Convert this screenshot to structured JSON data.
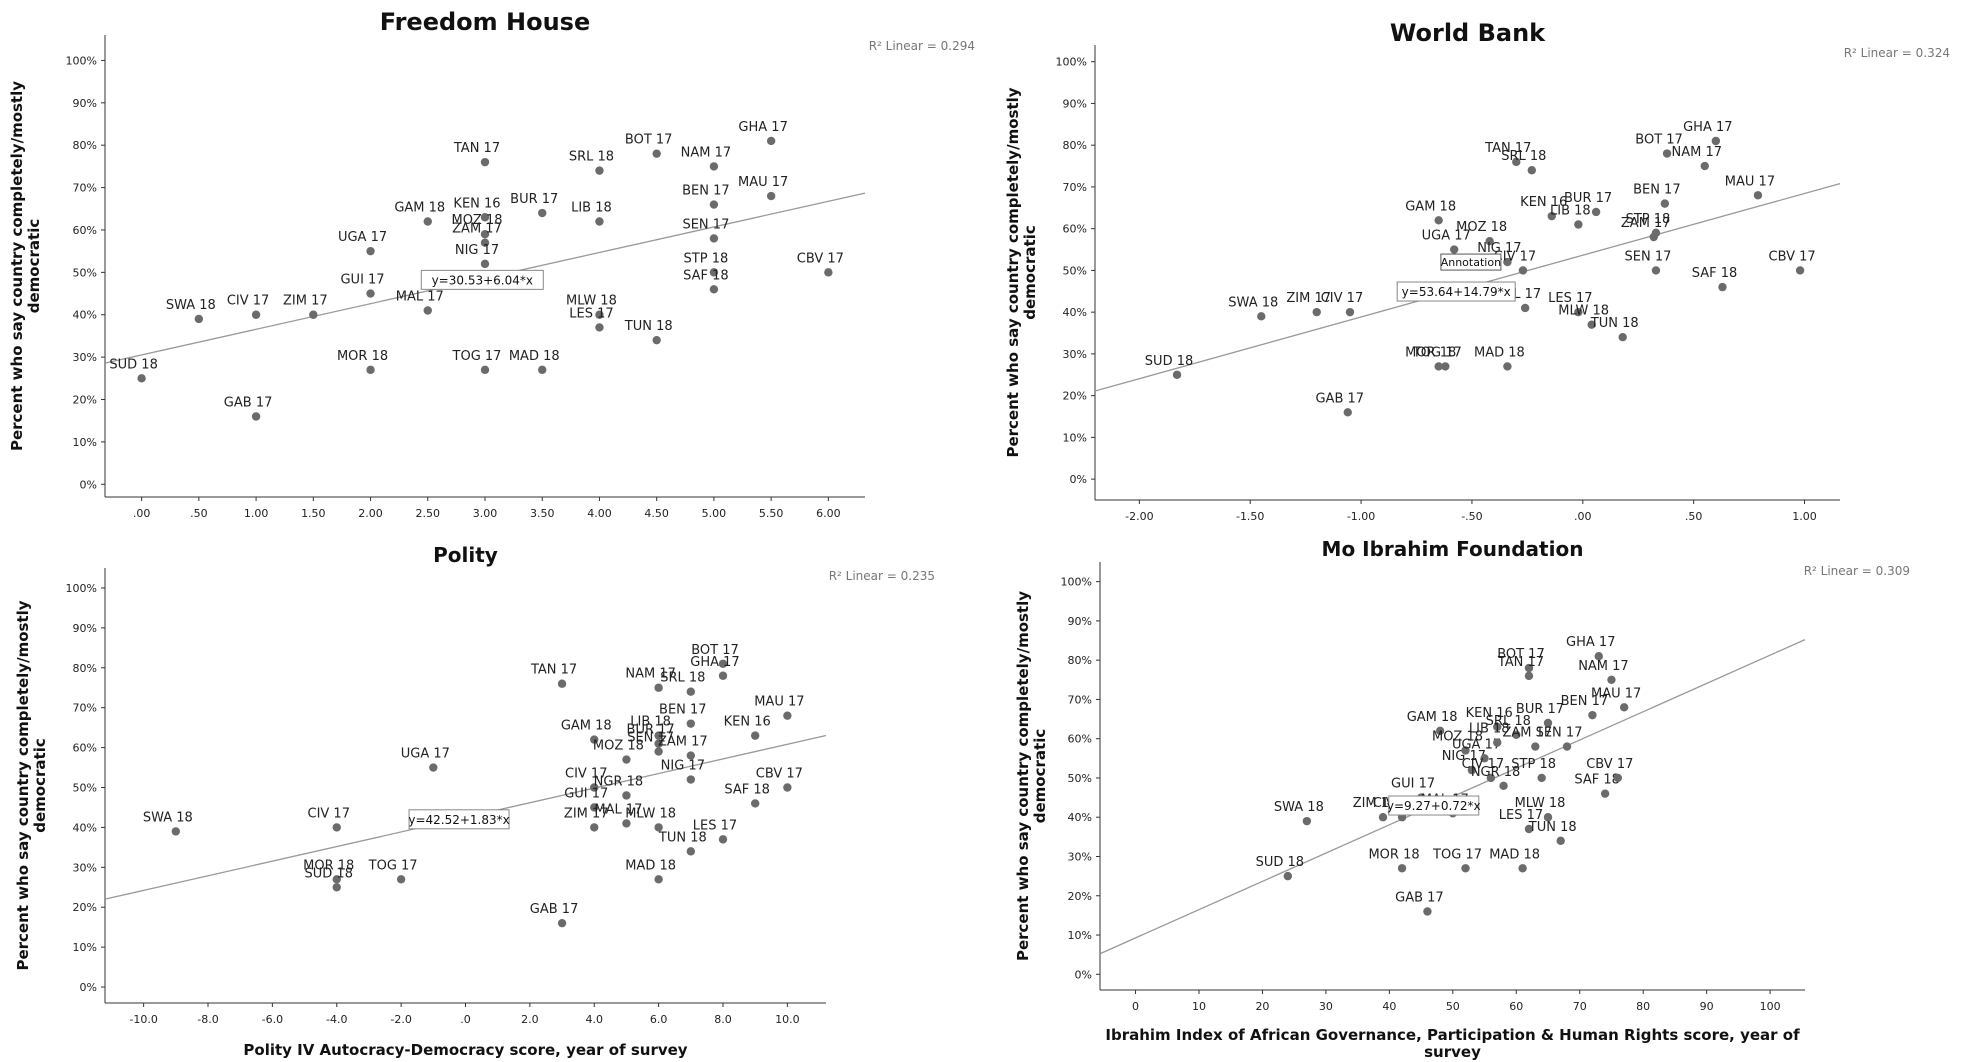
{
  "chart_data": [
    {
      "type": "scatter",
      "title": "Freedom House",
      "ylabel": "Percent who say country completely/mostly democratic",
      "xlabel": "",
      "xlim": [
        -0.32,
        6.32
      ],
      "ylim": [
        -0.03,
        1.06
      ],
      "xticks": [
        0,
        0.5,
        1,
        1.5,
        2,
        2.5,
        3,
        3.5,
        4,
        4.5,
        5,
        5.5,
        6
      ],
      "xtick_labels": [
        ".00",
        ".50",
        "1.00",
        "1.50",
        "2.00",
        "2.50",
        "3.00",
        "3.50",
        "4.00",
        "4.50",
        "5.00",
        "5.50",
        "6.00"
      ],
      "yticks": [
        0,
        0.1,
        0.2,
        0.3,
        0.4,
        0.5,
        0.6,
        0.7,
        0.8,
        0.9,
        1.0
      ],
      "ytick_labels": [
        "0%",
        "10%",
        "20%",
        "30%",
        "40%",
        "50%",
        "60%",
        "70%",
        "80%",
        "90%",
        "100%"
      ],
      "r2_label": "R² Linear = 0.294",
      "fit_label": "y=30.53+6.04*x",
      "fit": {
        "intercept": 0.3053,
        "slope": 0.0604
      },
      "annotation": "",
      "points": [
        {
          "label": "SUD 18",
          "x": 0,
          "y": 0.25
        },
        {
          "label": "SWA 18",
          "x": 0.5,
          "y": 0.39
        },
        {
          "label": "CIV 17",
          "x": 1.0,
          "y": 0.4
        },
        {
          "label": "GAB 17",
          "x": 1.0,
          "y": 0.16
        },
        {
          "label": "ZIM 17",
          "x": 1.5,
          "y": 0.4
        },
        {
          "label": "GUI 17",
          "x": 2.0,
          "y": 0.45
        },
        {
          "label": "UGA 17",
          "x": 2.0,
          "y": 0.55
        },
        {
          "label": "MOR 18",
          "x": 2.0,
          "y": 0.27
        },
        {
          "label": "MAL 17",
          "x": 2.5,
          "y": 0.41
        },
        {
          "label": "GAM 18",
          "x": 2.5,
          "y": 0.62
        },
        {
          "label": "TAN 17",
          "x": 3.0,
          "y": 0.76
        },
        {
          "label": "KEN 16",
          "x": 3.0,
          "y": 0.63
        },
        {
          "label": "MOZ 18",
          "x": 3.0,
          "y": 0.59
        },
        {
          "label": "ZAM 17",
          "x": 3.0,
          "y": 0.57
        },
        {
          "label": "NIG 17",
          "x": 3.0,
          "y": 0.52
        },
        {
          "label": "TOG 17",
          "x": 3.0,
          "y": 0.27
        },
        {
          "label": "BUR 17",
          "x": 3.5,
          "y": 0.64
        },
        {
          "label": "MAD 18",
          "x": 3.5,
          "y": 0.27
        },
        {
          "label": "SRL 18",
          "x": 4.0,
          "y": 0.74
        },
        {
          "label": "LIB 18",
          "x": 4.0,
          "y": 0.62
        },
        {
          "label": "MLW 18",
          "x": 4.0,
          "y": 0.4
        },
        {
          "label": "LES 17",
          "x": 4.0,
          "y": 0.37
        },
        {
          "label": "BOT 17",
          "x": 4.5,
          "y": 0.78
        },
        {
          "label": "TUN 18",
          "x": 4.5,
          "y": 0.34
        },
        {
          "label": "NAM 17",
          "x": 5.0,
          "y": 0.75
        },
        {
          "label": "BEN 17",
          "x": 5.0,
          "y": 0.66
        },
        {
          "label": "SEN 17",
          "x": 5.0,
          "y": 0.58
        },
        {
          "label": "STP 18",
          "x": 5.0,
          "y": 0.5
        },
        {
          "label": "SAF 18",
          "x": 5.0,
          "y": 0.46
        },
        {
          "label": "GHA 17",
          "x": 5.5,
          "y": 0.81
        },
        {
          "label": "MAU 17",
          "x": 5.5,
          "y": 0.68
        },
        {
          "label": "CBV 17",
          "x": 6.0,
          "y": 0.5
        }
      ]
    },
    {
      "type": "scatter",
      "title": "World Bank",
      "ylabel": "Percent who say country completely/mostly democratic",
      "xlabel": "",
      "xlim": [
        -2.2,
        1.16
      ],
      "ylim": [
        -0.05,
        1.04
      ],
      "xticks": [
        -2,
        -1.5,
        -1,
        -0.5,
        0,
        0.5,
        1
      ],
      "xtick_labels": [
        "-2.00",
        "-1.50",
        "-1.00",
        "-.50",
        ".00",
        ".50",
        "1.00"
      ],
      "yticks": [
        0,
        0.1,
        0.2,
        0.3,
        0.4,
        0.5,
        0.6,
        0.7,
        0.8,
        0.9,
        1.0
      ],
      "ytick_labels": [
        "0%",
        "10%",
        "20%",
        "30%",
        "40%",
        "50%",
        "60%",
        "70%",
        "80%",
        "90%",
        "100%"
      ],
      "r2_label": "R² Linear = 0.324",
      "fit_label": "y=53.64+14.79*x",
      "fit": {
        "intercept": 0.5364,
        "slope": 0.1479
      },
      "annotation": "Annotation",
      "points": [
        {
          "label": "SUD 18",
          "x": -1.83,
          "y": 0.25
        },
        {
          "label": "SWA 18",
          "x": -1.45,
          "y": 0.39
        },
        {
          "label": "ZIM 17",
          "x": -1.2,
          "y": 0.4
        },
        {
          "label": "CIV 17",
          "x": -1.05,
          "y": 0.4
        },
        {
          "label": "GAB 17",
          "x": -1.06,
          "y": 0.16
        },
        {
          "label": "GAM 18",
          "x": -0.65,
          "y": 0.62
        },
        {
          "label": "UGA 17",
          "x": -0.58,
          "y": 0.55
        },
        {
          "label": "MOR 18",
          "x": -0.65,
          "y": 0.27
        },
        {
          "label": "TOG 17",
          "x": -0.62,
          "y": 0.27
        },
        {
          "label": "MOZ 18",
          "x": -0.42,
          "y": 0.57
        },
        {
          "label": "NIG 17",
          "x": -0.34,
          "y": 0.52
        },
        {
          "label": "TAN 17",
          "x": -0.3,
          "y": 0.76
        },
        {
          "label": "SRL 18",
          "x": -0.23,
          "y": 0.74
        },
        {
          "label": "KEN 16",
          "x": -0.14,
          "y": 0.63
        },
        {
          "label": "CIV 17",
          "x": -0.27,
          "y": 0.5
        },
        {
          "label": "MAL 17",
          "x": -0.26,
          "y": 0.41
        },
        {
          "label": "MAD 18",
          "x": -0.34,
          "y": 0.27
        },
        {
          "label": "LIB 18",
          "x": -0.02,
          "y": 0.61
        },
        {
          "label": "BUR 17",
          "x": 0.06,
          "y": 0.64
        },
        {
          "label": "LES 17",
          "x": -0.02,
          "y": 0.4
        },
        {
          "label": "MLW 18",
          "x": 0.04,
          "y": 0.37
        },
        {
          "label": "TUN 18",
          "x": 0.18,
          "y": 0.34
        },
        {
          "label": "SEN 17",
          "x": 0.33,
          "y": 0.5
        },
        {
          "label": "ZAM 17",
          "x": 0.32,
          "y": 0.58
        },
        {
          "label": "STP 18",
          "x": 0.33,
          "y": 0.59
        },
        {
          "label": "BEN 17",
          "x": 0.37,
          "y": 0.66
        },
        {
          "label": "BOT 17",
          "x": 0.38,
          "y": 0.78
        },
        {
          "label": "NAM 17",
          "x": 0.55,
          "y": 0.75
        },
        {
          "label": "GHA 17",
          "x": 0.6,
          "y": 0.81
        },
        {
          "label": "SAF 18",
          "x": 0.63,
          "y": 0.46
        },
        {
          "label": "MAU 17",
          "x": 0.79,
          "y": 0.68
        },
        {
          "label": "CBV 17",
          "x": 0.98,
          "y": 0.5
        }
      ]
    },
    {
      "type": "scatter",
      "title": "Polity",
      "ylabel": "Percent who say country completely/mostly democratic",
      "xlabel": "Polity IV Autocracy-Democracy score, year of survey",
      "xlim": [
        -11.2,
        11.2
      ],
      "ylim": [
        -0.04,
        1.05
      ],
      "xticks": [
        -10,
        -8,
        -6,
        -4,
        -2,
        0,
        2,
        4,
        6,
        8,
        10
      ],
      "xtick_labels": [
        "-10.0",
        "-8.0",
        "-6.0",
        "-4.0",
        "-2.0",
        ".0",
        "2.0",
        "4.0",
        "6.0",
        "8.0",
        "10.0"
      ],
      "yticks": [
        0,
        0.1,
        0.2,
        0.3,
        0.4,
        0.5,
        0.6,
        0.7,
        0.8,
        0.9,
        1.0
      ],
      "ytick_labels": [
        "0%",
        "10%",
        "20%",
        "30%",
        "40%",
        "50%",
        "60%",
        "70%",
        "80%",
        "90%",
        "100%"
      ],
      "r2_label": "R² Linear = 0.235",
      "fit_label": "y=42.52+1.83*x",
      "fit": {
        "intercept": 0.4252,
        "slope": 0.0183
      },
      "annotation": "",
      "points": [
        {
          "label": "SWA 18",
          "x": -9,
          "y": 0.39
        },
        {
          "label": "CIV 17",
          "x": -4,
          "y": 0.4
        },
        {
          "label": "MOR 18",
          "x": -4,
          "y": 0.27
        },
        {
          "label": "SUD 18",
          "x": -4,
          "y": 0.25
        },
        {
          "label": "TOG 17",
          "x": -2,
          "y": 0.27
        },
        {
          "label": "UGA 17",
          "x": -1,
          "y": 0.55
        },
        {
          "label": "TAN 17",
          "x": 3,
          "y": 0.76
        },
        {
          "label": "GAB 17",
          "x": 3,
          "y": 0.16
        },
        {
          "label": "GAM 18",
          "x": 4,
          "y": 0.62
        },
        {
          "label": "CIV 17",
          "x": 4,
          "y": 0.5
        },
        {
          "label": "GUI 17",
          "x": 4,
          "y": 0.45
        },
        {
          "label": "ZIM 17",
          "x": 4,
          "y": 0.4
        },
        {
          "label": "MOZ 18",
          "x": 5,
          "y": 0.57
        },
        {
          "label": "NGR 18",
          "x": 5,
          "y": 0.48
        },
        {
          "label": "MAL 17",
          "x": 5,
          "y": 0.41
        },
        {
          "label": "NAM 17",
          "x": 6,
          "y": 0.75
        },
        {
          "label": "LIB 18",
          "x": 6,
          "y": 0.63
        },
        {
          "label": "BUR 17",
          "x": 6,
          "y": 0.61
        },
        {
          "label": "SEN 17",
          "x": 6,
          "y": 0.59
        },
        {
          "label": "MLW 18",
          "x": 6,
          "y": 0.4
        },
        {
          "label": "MAD 18",
          "x": 6,
          "y": 0.27
        },
        {
          "label": "SRL 18",
          "x": 7,
          "y": 0.74
        },
        {
          "label": "BEN 17",
          "x": 7,
          "y": 0.66
        },
        {
          "label": "ZAM 17",
          "x": 7,
          "y": 0.58
        },
        {
          "label": "NIG 17",
          "x": 7,
          "y": 0.52
        },
        {
          "label": "TUN 18",
          "x": 7,
          "y": 0.34
        },
        {
          "label": "BOT 17",
          "x": 8,
          "y": 0.81
        },
        {
          "label": "GHA 17",
          "x": 8,
          "y": 0.78
        },
        {
          "label": "LES 17",
          "x": 8,
          "y": 0.37
        },
        {
          "label": "KEN 16",
          "x": 9,
          "y": 0.63
        },
        {
          "label": "SAF 18",
          "x": 9,
          "y": 0.46
        },
        {
          "label": "MAU 17",
          "x": 10,
          "y": 0.68
        },
        {
          "label": "CBV 17",
          "x": 10,
          "y": 0.5
        }
      ]
    },
    {
      "type": "scatter",
      "title": "Mo Ibrahim Foundation",
      "ylabel": "Percent who say country completely/mostly democratic",
      "xlabel": "Ibrahim Index of African Governance, Participation & Human Rights score, year of survey",
      "xlim": [
        -5.6,
        105.5
      ],
      "ylim": [
        -0.04,
        1.05
      ],
      "xticks": [
        0,
        10,
        20,
        30,
        40,
        50,
        60,
        70,
        80,
        90,
        100
      ],
      "xtick_labels": [
        "0",
        "10",
        "20",
        "30",
        "40",
        "50",
        "60",
        "70",
        "80",
        "90",
        "100"
      ],
      "yticks": [
        0,
        0.1,
        0.2,
        0.3,
        0.4,
        0.5,
        0.6,
        0.7,
        0.8,
        0.9,
        1.0
      ],
      "ytick_labels": [
        "0%",
        "10%",
        "20%",
        "30%",
        "40%",
        "50%",
        "60%",
        "70%",
        "80%",
        "90%",
        "100%"
      ],
      "r2_label": "R² Linear = 0.309",
      "fit_label": "y=9.27+0.72*x",
      "fit": {
        "intercept": 0.0927,
        "slope": 0.0072
      },
      "annotation": "",
      "points": [
        {
          "label": "SUD 18",
          "x": 24,
          "y": 0.25
        },
        {
          "label": "SWA 18",
          "x": 27,
          "y": 0.39
        },
        {
          "label": "ZIM 17",
          "x": 39,
          "y": 0.4
        },
        {
          "label": "CIV 17",
          "x": 42,
          "y": 0.4
        },
        {
          "label": "MOR 18",
          "x": 42,
          "y": 0.27
        },
        {
          "label": "GUI 17",
          "x": 45,
          "y": 0.45
        },
        {
          "label": "GAB 17",
          "x": 46,
          "y": 0.16
        },
        {
          "label": "GAM 18",
          "x": 48,
          "y": 0.62
        },
        {
          "label": "MAL 17",
          "x": 50,
          "y": 0.41
        },
        {
          "label": "NIG 17",
          "x": 53,
          "y": 0.52
        },
        {
          "label": "MOZ 18",
          "x": 52,
          "y": 0.57
        },
        {
          "label": "TOG 17",
          "x": 52,
          "y": 0.27
        },
        {
          "label": "UGA 17",
          "x": 55,
          "y": 0.55
        },
        {
          "label": "CIV 17",
          "x": 56,
          "y": 0.5
        },
        {
          "label": "KEN 16",
          "x": 57,
          "y": 0.63
        },
        {
          "label": "LIB 18",
          "x": 57,
          "y": 0.59
        },
        {
          "label": "NGR 18",
          "x": 58,
          "y": 0.48
        },
        {
          "label": "SRL 18",
          "x": 60,
          "y": 0.61
        },
        {
          "label": "MAD 18",
          "x": 61,
          "y": 0.27
        },
        {
          "label": "BOT 17",
          "x": 62,
          "y": 0.78
        },
        {
          "label": "TAN 17",
          "x": 62,
          "y": 0.76
        },
        {
          "label": "LES 17",
          "x": 62,
          "y": 0.37
        },
        {
          "label": "ZAM 17",
          "x": 63,
          "y": 0.58
        },
        {
          "label": "STP 18",
          "x": 64,
          "y": 0.5
        },
        {
          "label": "MLW 18",
          "x": 65,
          "y": 0.4
        },
        {
          "label": "BUR 17",
          "x": 65,
          "y": 0.64
        },
        {
          "label": "TUN 18",
          "x": 67,
          "y": 0.34
        },
        {
          "label": "SEN 17",
          "x": 68,
          "y": 0.58
        },
        {
          "label": "BEN 17",
          "x": 72,
          "y": 0.66
        },
        {
          "label": "GHA 17",
          "x": 73,
          "y": 0.81
        },
        {
          "label": "SAF 18",
          "x": 74,
          "y": 0.46
        },
        {
          "label": "NAM 17",
          "x": 75,
          "y": 0.75
        },
        {
          "label": "CBV 17",
          "x": 76,
          "y": 0.5
        },
        {
          "label": "MAU 17",
          "x": 77,
          "y": 0.68
        }
      ]
    }
  ]
}
